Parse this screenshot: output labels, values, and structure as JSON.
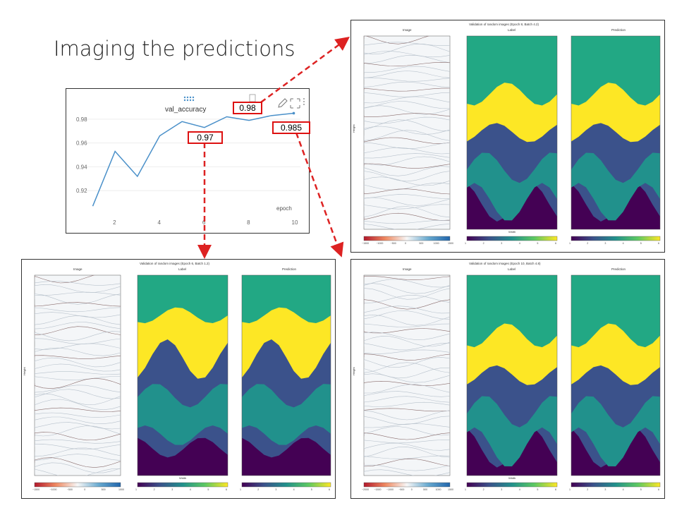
{
  "slide": {
    "title": "Imaging the predictions"
  },
  "chart_data": {
    "type": "line",
    "title": "val_accuracy",
    "xlabel": "epoch",
    "ylabel": "",
    "x": [
      1,
      2,
      3,
      4,
      5,
      6,
      7,
      8,
      9,
      10
    ],
    "values": [
      0.907,
      0.953,
      0.932,
      0.966,
      0.978,
      0.973,
      0.982,
      0.979,
      0.983,
      0.985
    ],
    "xlim": [
      0.7,
      10.3
    ],
    "ylim": [
      0.9,
      0.99
    ],
    "xticks": [
      "2",
      "4",
      "6",
      "8",
      "10"
    ],
    "yticks": [
      "0.92",
      "0.94",
      "0.96",
      "0.98"
    ],
    "color": "#4a90c9"
  },
  "callouts": {
    "epoch6": "0.97",
    "epoch8": "0.98",
    "epoch10": "0.985"
  },
  "figures": {
    "top_right": {
      "title": "Validation of random images (Epoch 8, Batch 4.2)",
      "image_label": "Image",
      "label_label": "Label",
      "prediction_label": "Prediction",
      "xlabel": "Width",
      "ylabel": "Height",
      "amp_ticks": [
        "−1500",
        "−1000",
        "−500",
        "0",
        "500",
        "1000",
        "1500"
      ],
      "class_ticks": [
        "1",
        "2",
        "3",
        "4",
        "5",
        "6"
      ]
    },
    "bottom_left": {
      "title": "Validation of random images (Epoch 6, Batch 1.2)",
      "image_label": "Image",
      "label_label": "Label",
      "prediction_label": "Prediction",
      "xlabel": "Width",
      "ylabel": "Height",
      "amp_ticks": [
        "−1500",
        "−1000",
        "−500",
        "0",
        "500",
        "1000"
      ],
      "class_ticks": [
        "1",
        "2",
        "3",
        "4",
        "5",
        "6"
      ]
    },
    "bottom_right": {
      "title": "Validation of random images (Epoch 10, Batch 4.8)",
      "image_label": "Image",
      "label_label": "Label",
      "prediction_label": "Prediction",
      "xlabel": "Width",
      "ylabel": "Height",
      "amp_ticks": [
        "−2000",
        "−1500",
        "−1000",
        "−500",
        "0",
        "500",
        "1000",
        "1500"
      ],
      "class_ticks": [
        "1",
        "2",
        "3",
        "4",
        "5",
        "6"
      ]
    }
  },
  "colors": {
    "arrow": "#dd2222",
    "class1": "#440154",
    "class2": "#3b528b",
    "class3": "#21918c",
    "class4": "#5ec962",
    "class5": "#fde725",
    "class6": "#22a884"
  }
}
